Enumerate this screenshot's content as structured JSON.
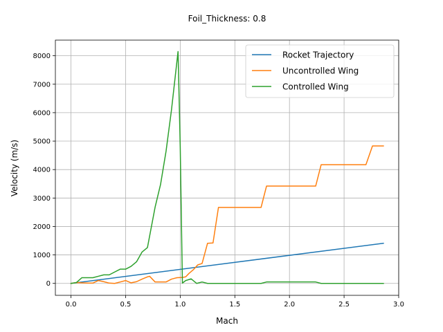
{
  "chart_data": {
    "type": "line",
    "title": "Foil_Thickness: 0.8",
    "xlabel": "Mach",
    "ylabel": "Velocity (m/s)",
    "xlim": [
      -0.143,
      3.0
    ],
    "ylim": [
      -420,
      8550
    ],
    "grid": true,
    "legend_position": "top-right",
    "x_ticks": [
      0.0,
      0.5,
      1.0,
      1.5,
      2.0,
      2.5,
      3.0
    ],
    "x_tick_labels": [
      "0.0",
      "0.5",
      "1.0",
      "1.5",
      "2.0",
      "2.5",
      "3.0"
    ],
    "y_ticks": [
      0,
      1000,
      2000,
      3000,
      4000,
      5000,
      6000,
      7000,
      8000
    ],
    "y_tick_labels": [
      "0",
      "1000",
      "2000",
      "3000",
      "4000",
      "5000",
      "6000",
      "7000",
      "8000"
    ],
    "series": [
      {
        "name": "Rocket Trajectory",
        "color": "#1f77b4",
        "x": [
          0.0,
          2.86
        ],
        "y": [
          0,
          1410
        ]
      },
      {
        "name": "Uncontrolled Wing",
        "color": "#ff7f0e",
        "x": [
          0.0,
          0.05,
          0.1,
          0.15,
          0.2,
          0.25,
          0.3,
          0.35,
          0.4,
          0.45,
          0.5,
          0.55,
          0.6,
          0.65,
          0.7,
          0.72,
          0.77,
          0.82,
          0.87,
          0.92,
          0.97,
          1.02,
          1.05,
          1.08,
          1.12,
          1.16,
          1.2,
          1.25,
          1.3,
          1.35,
          1.7,
          1.74,
          1.79,
          2.2,
          2.24,
          2.29,
          2.7,
          2.76,
          2.86
        ],
        "y": [
          0,
          30,
          20,
          10,
          10,
          100,
          60,
          10,
          0,
          50,
          100,
          20,
          60,
          150,
          230,
          250,
          50,
          50,
          50,
          150,
          200,
          210,
          230,
          350,
          480,
          650,
          700,
          1410,
          1420,
          2670,
          2670,
          2670,
          3420,
          3420,
          3420,
          4170,
          4170,
          4830,
          4830
        ]
      },
      {
        "name": "Controlled Wing",
        "color": "#2ca02c",
        "x": [
          0.0,
          0.05,
          0.1,
          0.15,
          0.2,
          0.25,
          0.3,
          0.35,
          0.4,
          0.45,
          0.5,
          0.55,
          0.6,
          0.65,
          0.7,
          0.77,
          0.82,
          0.87,
          0.92,
          0.98,
          1.0,
          1.02,
          1.05,
          1.1,
          1.15,
          1.2,
          1.25,
          1.3,
          1.4,
          1.5,
          1.6,
          1.74,
          1.79,
          1.9,
          2.0,
          2.1,
          2.24,
          2.29,
          2.5,
          2.7,
          2.86
        ],
        "y": [
          0,
          30,
          200,
          200,
          200,
          250,
          300,
          300,
          400,
          500,
          500,
          600,
          760,
          1100,
          1260,
          2680,
          3480,
          4640,
          6100,
          8150,
          4800,
          10,
          100,
          160,
          0,
          50,
          0,
          0,
          0,
          0,
          0,
          0,
          50,
          50,
          50,
          50,
          50,
          0,
          0,
          0,
          0
        ]
      }
    ]
  }
}
